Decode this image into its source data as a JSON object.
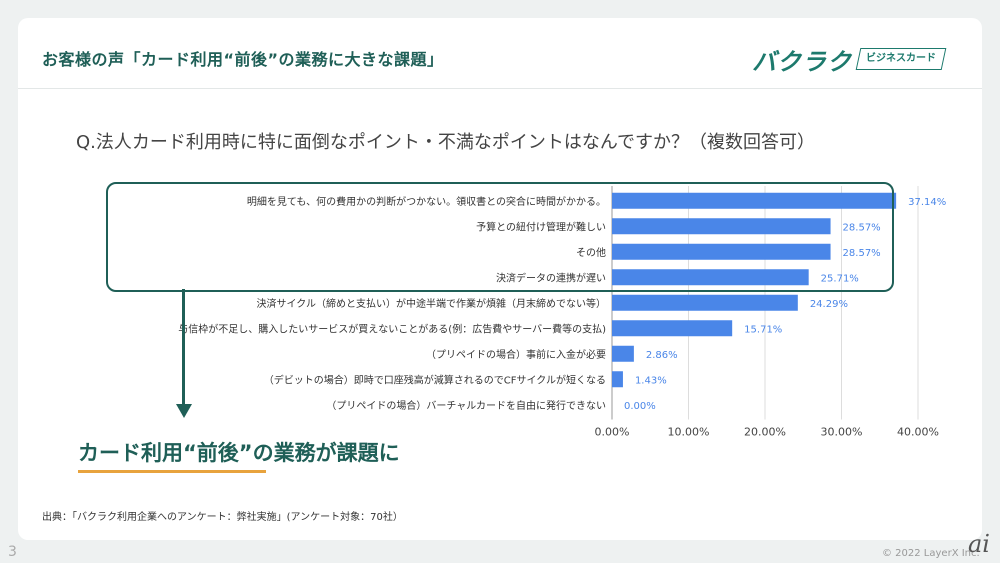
{
  "header": {
    "title": "お客様の声「カード利用“前後”の業務に大きな課題」",
    "logo_text": "バクラク",
    "logo_badge": "ビジネスカード"
  },
  "question": "Q.法人カード利用時に特に面倒なポイント・不満なポイントはなんですか？（複数回答可）",
  "takeaway": "カード利用“前後”の業務が課題に",
  "source": "出典：「バクラク利用企業へのアンケート：弊社実施」(アンケート対象：70社）",
  "footer": {
    "page_number": "3",
    "copyright": "© 2022 LayerX Inc."
  },
  "colors": {
    "bar": "#4a86e8",
    "accent": "#1f5f57",
    "underline": "#e8a33d"
  },
  "chart_data": {
    "type": "bar",
    "orientation": "horizontal",
    "categories": [
      "明細を見ても、何の費用かの判断がつかない。領収書との突合に時間がかかる。",
      "予算との紐付け管理が難しい",
      "その他",
      "決済データの連携が遅い",
      "決済サイクル（締めと支払い）が中途半端で作業が煩雑（月末締めでない等）",
      "与信枠が不足し、購入したいサービスが買えないことがある(例：広告費やサーバー費等の支払)",
      "（プリペイドの場合）事前に入金が必要",
      "（デビットの場合）即時で口座残高が減算されるのでCFサイクルが短くなる",
      "（プリペイドの場合）バーチャルカードを自由に発行できない"
    ],
    "values": [
      37.14,
      28.57,
      28.57,
      25.71,
      24.29,
      15.71,
      2.86,
      1.43,
      0.0
    ],
    "value_labels": [
      "37.14%",
      "28.57%",
      "28.57%",
      "25.71%",
      "24.29%",
      "15.71%",
      "2.86%",
      "1.43%",
      "0.00%"
    ],
    "xlim": [
      0,
      40
    ],
    "x_ticks": [
      "0.00%",
      "10.00%",
      "20.00%",
      "30.00%",
      "40.00%"
    ],
    "gridlines": true
  }
}
